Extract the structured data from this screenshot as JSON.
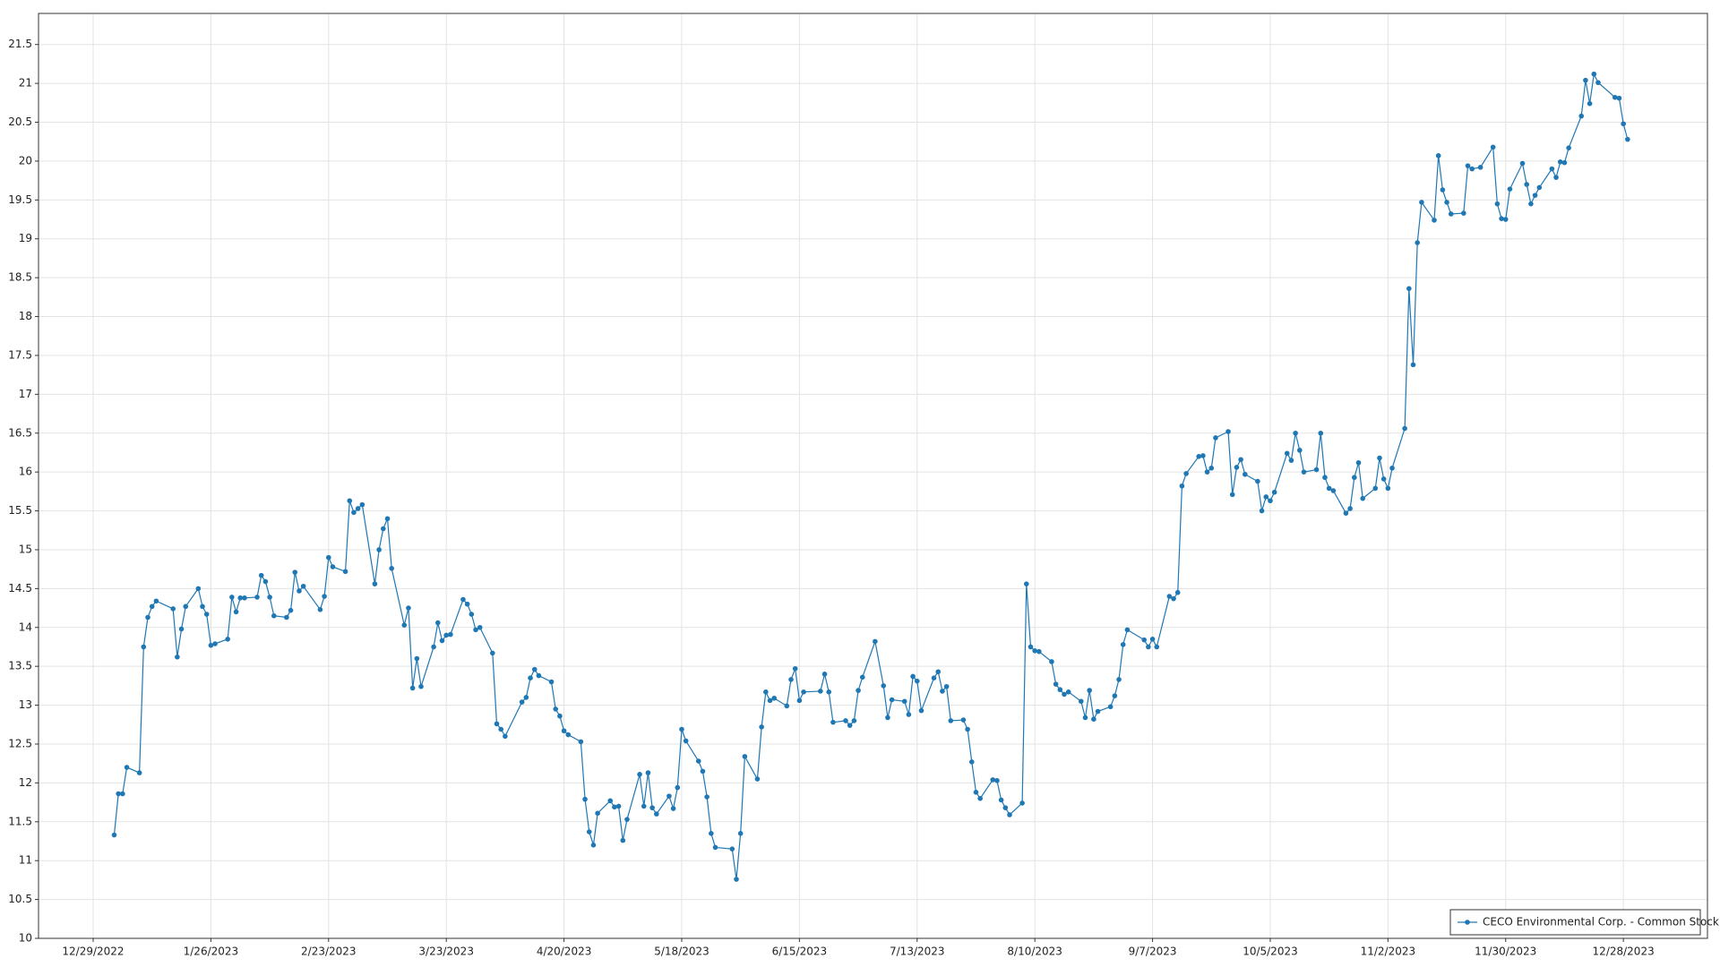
{
  "chart_data": {
    "type": "line",
    "x": [
      "2023-01-03",
      "2023-01-04",
      "2023-01-05",
      "2023-01-06",
      "2023-01-09",
      "2023-01-10",
      "2023-01-11",
      "2023-01-12",
      "2023-01-13",
      "2023-01-17",
      "2023-01-18",
      "2023-01-19",
      "2023-01-20",
      "2023-01-23",
      "2023-01-24",
      "2023-01-25",
      "2023-01-26",
      "2023-01-27",
      "2023-01-30",
      "2023-01-31",
      "2023-02-01",
      "2023-02-02",
      "2023-02-03",
      "2023-02-06",
      "2023-02-07",
      "2023-02-08",
      "2023-02-09",
      "2023-02-10",
      "2023-02-13",
      "2023-02-14",
      "2023-02-15",
      "2023-02-16",
      "2023-02-17",
      "2023-02-21",
      "2023-02-22",
      "2023-02-23",
      "2023-02-24",
      "2023-02-27",
      "2023-02-28",
      "2023-03-01",
      "2023-03-02",
      "2023-03-03",
      "2023-03-06",
      "2023-03-07",
      "2023-03-08",
      "2023-03-09",
      "2023-03-10",
      "2023-03-13",
      "2023-03-14",
      "2023-03-15",
      "2023-03-16",
      "2023-03-17",
      "2023-03-20",
      "2023-03-21",
      "2023-03-22",
      "2023-03-23",
      "2023-03-24",
      "2023-03-27",
      "2023-03-28",
      "2023-03-29",
      "2023-03-30",
      "2023-03-31",
      "2023-04-03",
      "2023-04-04",
      "2023-04-05",
      "2023-04-06",
      "2023-04-10",
      "2023-04-11",
      "2023-04-12",
      "2023-04-13",
      "2023-04-14",
      "2023-04-17",
      "2023-04-18",
      "2023-04-19",
      "2023-04-20",
      "2023-04-21",
      "2023-04-24",
      "2023-04-25",
      "2023-04-26",
      "2023-04-27",
      "2023-04-28",
      "2023-05-01",
      "2023-05-02",
      "2023-05-03",
      "2023-05-04",
      "2023-05-05",
      "2023-05-08",
      "2023-05-09",
      "2023-05-10",
      "2023-05-11",
      "2023-05-12",
      "2023-05-15",
      "2023-05-16",
      "2023-05-17",
      "2023-05-18",
      "2023-05-19",
      "2023-05-22",
      "2023-05-23",
      "2023-05-24",
      "2023-05-25",
      "2023-05-26",
      "2023-05-30",
      "2023-05-31",
      "2023-06-01",
      "2023-06-02",
      "2023-06-05",
      "2023-06-06",
      "2023-06-07",
      "2023-06-08",
      "2023-06-09",
      "2023-06-12",
      "2023-06-13",
      "2023-06-14",
      "2023-06-15",
      "2023-06-16",
      "2023-06-20",
      "2023-06-21",
      "2023-06-22",
      "2023-06-23",
      "2023-06-26",
      "2023-06-27",
      "2023-06-28",
      "2023-06-29",
      "2023-06-30",
      "2023-07-03",
      "2023-07-05",
      "2023-07-06",
      "2023-07-07",
      "2023-07-10",
      "2023-07-11",
      "2023-07-12",
      "2023-07-13",
      "2023-07-14",
      "2023-07-17",
      "2023-07-18",
      "2023-07-19",
      "2023-07-20",
      "2023-07-21",
      "2023-07-24",
      "2023-07-25",
      "2023-07-26",
      "2023-07-27",
      "2023-07-28",
      "2023-07-31",
      "2023-08-01",
      "2023-08-02",
      "2023-08-03",
      "2023-08-04",
      "2023-08-07",
      "2023-08-08",
      "2023-08-09",
      "2023-08-10",
      "2023-08-11",
      "2023-08-14",
      "2023-08-15",
      "2023-08-16",
      "2023-08-17",
      "2023-08-18",
      "2023-08-21",
      "2023-08-22",
      "2023-08-23",
      "2023-08-24",
      "2023-08-25",
      "2023-08-28",
      "2023-08-29",
      "2023-08-30",
      "2023-08-31",
      "2023-09-01",
      "2023-09-05",
      "2023-09-06",
      "2023-09-07",
      "2023-09-08",
      "2023-09-11",
      "2023-09-12",
      "2023-09-13",
      "2023-09-14",
      "2023-09-15",
      "2023-09-18",
      "2023-09-19",
      "2023-09-20",
      "2023-09-21",
      "2023-09-22",
      "2023-09-25",
      "2023-09-26",
      "2023-09-27",
      "2023-09-28",
      "2023-09-29",
      "2023-10-02",
      "2023-10-03",
      "2023-10-04",
      "2023-10-05",
      "2023-10-06",
      "2023-10-09",
      "2023-10-10",
      "2023-10-11",
      "2023-10-12",
      "2023-10-13",
      "2023-10-16",
      "2023-10-17",
      "2023-10-18",
      "2023-10-19",
      "2023-10-20",
      "2023-10-23",
      "2023-10-24",
      "2023-10-25",
      "2023-10-26",
      "2023-10-27",
      "2023-10-30",
      "2023-10-31",
      "2023-11-01",
      "2023-11-02",
      "2023-11-03",
      "2023-11-06",
      "2023-11-07",
      "2023-11-08",
      "2023-11-09",
      "2023-11-10",
      "2023-11-13",
      "2023-11-14",
      "2023-11-15",
      "2023-11-16",
      "2023-11-17",
      "2023-11-20",
      "2023-11-21",
      "2023-11-22",
      "2023-11-24",
      "2023-11-27",
      "2023-11-28",
      "2023-11-29",
      "2023-11-30",
      "2023-12-01",
      "2023-12-04",
      "2023-12-05",
      "2023-12-06",
      "2023-12-07",
      "2023-12-08",
      "2023-12-11",
      "2023-12-12",
      "2023-12-13",
      "2023-12-14",
      "2023-12-15",
      "2023-12-18",
      "2023-12-19",
      "2023-12-20",
      "2023-12-21",
      "2023-12-22",
      "2023-12-26",
      "2023-12-27",
      "2023-12-28",
      "2023-12-29"
    ],
    "series": [
      {
        "name": "CECO Environmental Corp. - Common Stock",
        "color": "#1f77b4",
        "values": [
          11.33,
          11.86,
          11.86,
          12.2,
          12.13,
          13.75,
          14.13,
          14.27,
          14.34,
          14.24,
          13.62,
          13.98,
          14.27,
          14.5,
          14.27,
          14.17,
          13.77,
          13.79,
          13.85,
          14.39,
          14.2,
          14.38,
          14.38,
          14.39,
          14.67,
          14.59,
          14.39,
          14.15,
          14.13,
          14.22,
          14.71,
          14.47,
          14.53,
          14.23,
          14.4,
          14.9,
          14.78,
          14.72,
          15.63,
          15.48,
          15.53,
          15.58,
          14.56,
          15.0,
          15.27,
          15.4,
          14.76,
          14.03,
          14.25,
          13.22,
          13.6,
          13.24,
          13.75,
          14.06,
          13.83,
          13.9,
          13.91,
          14.36,
          14.3,
          14.17,
          13.97,
          14.0,
          13.67,
          12.76,
          12.69,
          12.6,
          13.04,
          13.1,
          13.35,
          13.46,
          13.38,
          13.3,
          12.95,
          12.86,
          12.67,
          12.62,
          12.53,
          11.79,
          11.37,
          11.2,
          11.61,
          11.77,
          11.69,
          11.7,
          11.26,
          11.53,
          12.11,
          11.7,
          12.13,
          11.68,
          11.6,
          11.83,
          11.67,
          11.94,
          12.69,
          12.54,
          12.28,
          12.15,
          11.82,
          11.35,
          11.17,
          11.15,
          10.76,
          11.35,
          12.34,
          12.05,
          12.72,
          13.17,
          13.06,
          13.09,
          12.99,
          13.33,
          13.47,
          13.06,
          13.17,
          13.18,
          13.4,
          13.17,
          12.78,
          12.8,
          12.74,
          12.8,
          13.19,
          13.36,
          13.82,
          13.25,
          12.84,
          13.07,
          13.05,
          12.88,
          13.37,
          13.31,
          12.93,
          13.35,
          13.43,
          13.18,
          13.24,
          12.8,
          12.81,
          12.69,
          12.27,
          11.88,
          11.8,
          12.04,
          12.03,
          11.78,
          11.68,
          11.59,
          11.74,
          14.56,
          13.75,
          13.7,
          13.69,
          13.56,
          13.27,
          13.2,
          13.14,
          13.17,
          13.05,
          12.84,
          13.19,
          12.82,
          12.92,
          12.98,
          13.12,
          13.33,
          13.78,
          13.97,
          13.84,
          13.75,
          13.85,
          13.75,
          14.4,
          14.37,
          14.45,
          15.82,
          15.98,
          16.2,
          16.21,
          16.0,
          16.05,
          16.44,
          16.52,
          15.71,
          16.06,
          16.16,
          15.97,
          15.88,
          15.5,
          15.68,
          15.63,
          15.74,
          16.24,
          16.15,
          16.5,
          16.28,
          16.0,
          16.03,
          16.5,
          15.93,
          15.79,
          15.76,
          15.47,
          15.53,
          15.93,
          16.12,
          15.66,
          15.79,
          16.18,
          15.91,
          15.79,
          16.05,
          16.56,
          18.36,
          17.38,
          18.95,
          19.47,
          19.24,
          20.07,
          19.63,
          19.47,
          19.32,
          19.33,
          19.94,
          19.9,
          19.92,
          20.18,
          19.45,
          19.26,
          19.25,
          19.64,
          19.97,
          19.7,
          19.45,
          19.56,
          19.66,
          19.9,
          19.79,
          19.99,
          19.98,
          20.17,
          20.58,
          21.04,
          20.74,
          21.12,
          21.01,
          20.82,
          20.81,
          20.48,
          20.28
        ]
      }
    ],
    "xlim": [
      "2022-12-16",
      "2024-01-17"
    ],
    "xticks": [
      {
        "value": "2022-12-29",
        "label": "12/29/2022"
      },
      {
        "value": "2023-01-26",
        "label": "1/26/2023"
      },
      {
        "value": "2023-02-23",
        "label": "2/23/2023"
      },
      {
        "value": "2023-03-23",
        "label": "3/23/2023"
      },
      {
        "value": "2023-04-20",
        "label": "4/20/2023"
      },
      {
        "value": "2023-05-18",
        "label": "5/18/2023"
      },
      {
        "value": "2023-06-15",
        "label": "6/15/2023"
      },
      {
        "value": "2023-07-13",
        "label": "7/13/2023"
      },
      {
        "value": "2023-08-10",
        "label": "8/10/2023"
      },
      {
        "value": "2023-09-07",
        "label": "9/7/2023"
      },
      {
        "value": "2023-10-05",
        "label": "10/5/2023"
      },
      {
        "value": "2023-11-02",
        "label": "11/2/2023"
      },
      {
        "value": "2023-11-30",
        "label": "11/30/2023"
      },
      {
        "value": "2023-12-28",
        "label": "12/28/2023"
      }
    ],
    "ylim": [
      10,
      21.9
    ],
    "yticks": [
      10,
      10.5,
      11,
      11.5,
      12,
      12.5,
      13,
      13.5,
      14,
      14.5,
      15,
      15.5,
      16,
      16.5,
      17,
      17.5,
      18,
      18.5,
      19,
      19.5,
      20,
      20.5,
      21,
      21.5
    ],
    "grid": true,
    "legend": "lower right"
  }
}
